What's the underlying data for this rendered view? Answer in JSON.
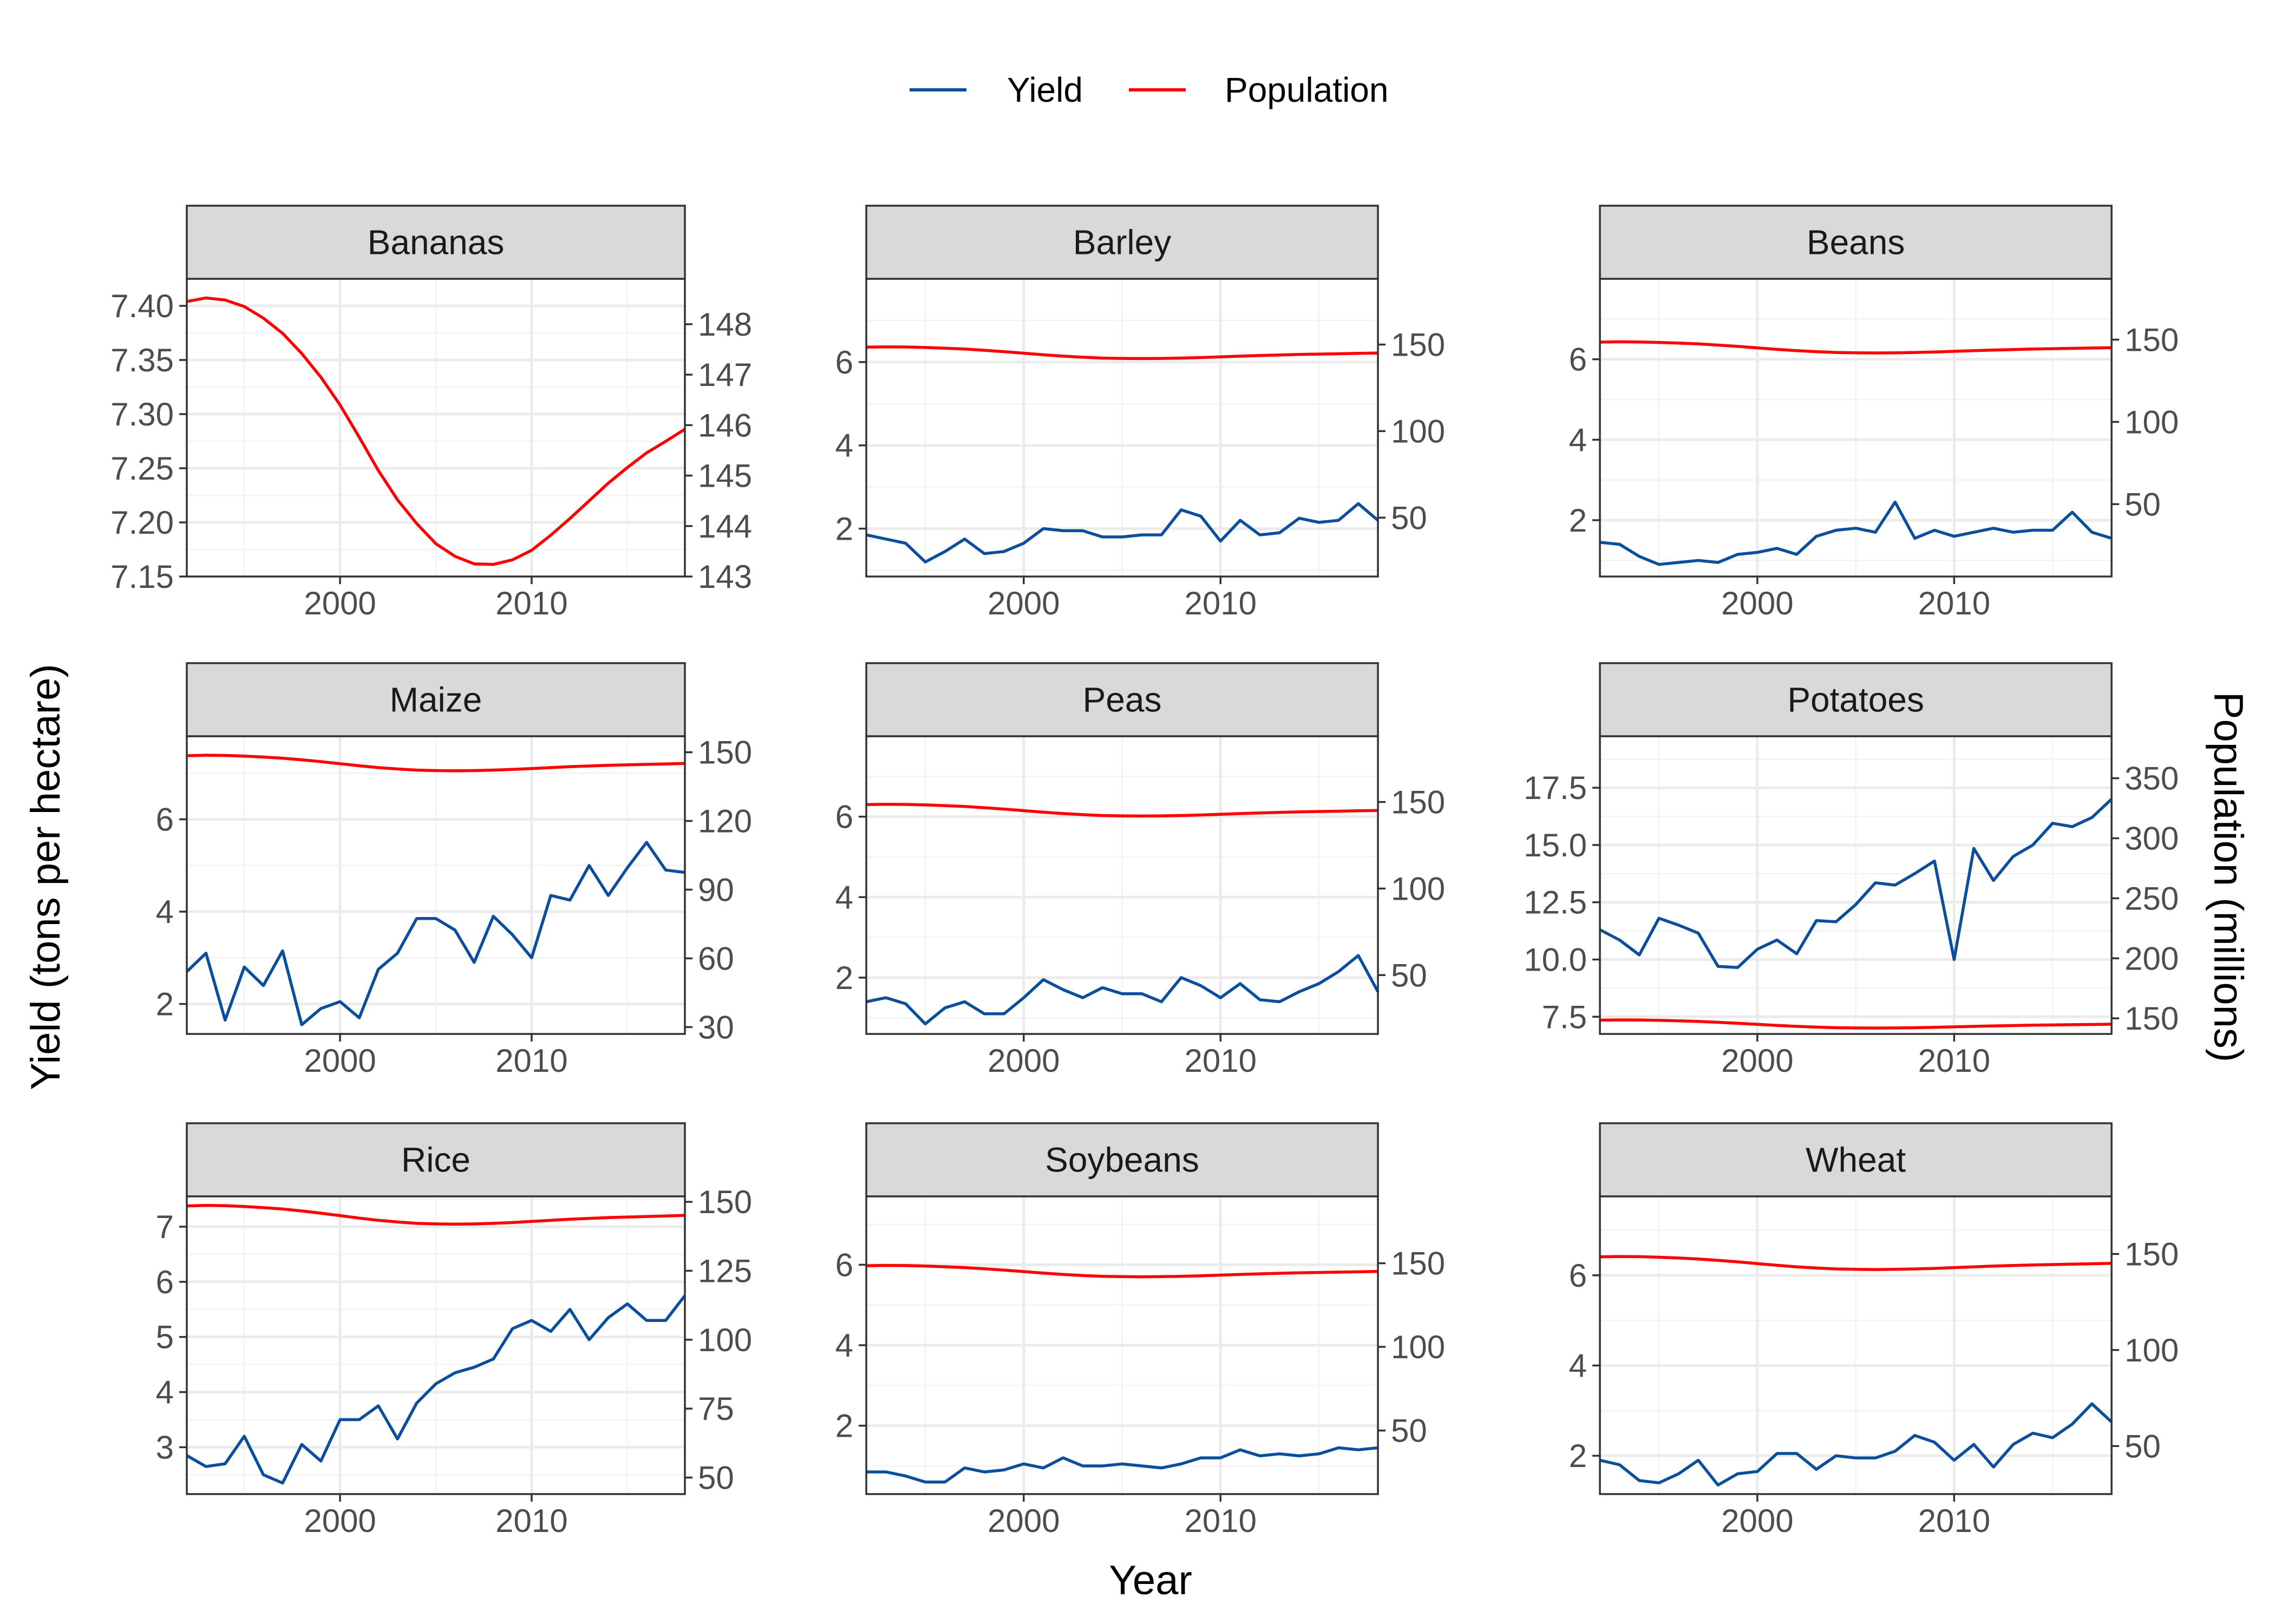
{
  "chart_data": {
    "type": "line",
    "facet": "wrap",
    "xlabel": "Year",
    "ylabel": "Yield (tons per hectare)",
    "ylabel_right": "Population (millions)",
    "legend": {
      "position": "top",
      "entries": [
        "Yield",
        "Population"
      ]
    },
    "colors": {
      "Yield": "#0b4f9c",
      "Population": "#ff0000"
    },
    "x_range": [
      1992,
      2018
    ],
    "x_ticks": [
      "2000",
      "2010"
    ],
    "years": [
      1992,
      1993,
      1994,
      1995,
      1996,
      1997,
      1998,
      1999,
      2000,
      2001,
      2002,
      2003,
      2004,
      2005,
      2006,
      2007,
      2008,
      2009,
      2010,
      2011,
      2012,
      2013,
      2014,
      2015,
      2016,
      2017,
      2018
    ],
    "population_series": [
      148.5,
      148.7,
      148.6,
      148.3,
      147.9,
      147.4,
      146.7,
      145.9,
      145.0,
      144.1,
      143.3,
      142.7,
      142.2,
      142.0,
      141.9,
      142.0,
      142.2,
      142.5,
      142.9,
      143.3,
      143.7,
      144.0,
      144.3,
      144.5,
      144.7,
      144.9,
      145.1
    ],
    "panels": [
      {
        "title": "Bananas",
        "yield": [],
        "population": [
          148.45,
          148.52,
          148.48,
          148.35,
          148.12,
          147.82,
          147.42,
          146.95,
          146.4,
          145.76,
          145.1,
          144.52,
          144.05,
          143.65,
          143.4,
          143.25,
          143.24,
          143.33,
          143.52,
          143.82,
          144.15,
          144.5,
          144.85,
          145.16,
          145.45,
          145.68,
          145.92
        ],
        "y_left": {
          "range": [
            7.15,
            7.425
          ],
          "ticks": [
            "7.15",
            "7.20",
            "7.25",
            "7.30",
            "7.35",
            "7.40"
          ]
        },
        "y_right": {
          "range": [
            143,
            148.9
          ],
          "ticks": [
            "143",
            "144",
            "145",
            "146",
            "147",
            "148"
          ]
        }
      },
      {
        "title": "Barley",
        "yield": [
          1.85,
          1.75,
          1.65,
          1.2,
          1.45,
          1.75,
          1.4,
          1.45,
          1.65,
          2.0,
          1.95,
          1.95,
          1.8,
          1.8,
          1.85,
          1.85,
          2.45,
          2.3,
          1.7,
          2.2,
          1.85,
          1.9,
          2.25,
          2.15,
          2.2,
          2.6,
          2.2
        ],
        "y_left": {
          "range": [
            0.85,
            8.0
          ],
          "ticks": [
            "2",
            "4",
            "6"
          ]
        },
        "y_right": {
          "range": [
            16,
            188
          ],
          "ticks": [
            "50",
            "100",
            "150"
          ]
        }
      },
      {
        "title": "Beans",
        "yield": [
          1.45,
          1.4,
          1.1,
          0.9,
          0.95,
          1.0,
          0.95,
          1.15,
          1.2,
          1.3,
          1.15,
          1.6,
          1.75,
          1.8,
          1.7,
          2.45,
          1.55,
          1.75,
          1.6,
          1.7,
          1.8,
          1.7,
          1.75,
          1.75,
          2.2,
          1.7,
          1.55
        ],
        "y_left": {
          "range": [
            0.6,
            8.0
          ],
          "ticks": [
            "2",
            "4",
            "6"
          ]
        },
        "y_right": {
          "range": [
            6,
            187
          ],
          "ticks": [
            "50",
            "100",
            "150"
          ]
        }
      },
      {
        "title": "Maize",
        "yield": [
          2.7,
          3.1,
          1.65,
          2.8,
          2.4,
          3.15,
          1.55,
          1.9,
          2.05,
          1.7,
          2.75,
          3.1,
          3.85,
          3.85,
          3.6,
          2.9,
          3.9,
          3.5,
          3.0,
          4.35,
          4.25,
          5.0,
          4.35,
          4.95,
          5.5,
          4.9,
          4.85
        ],
        "y_left": {
          "range": [
            1.35,
            7.8
          ],
          "ticks": [
            "2",
            "4",
            "6"
          ]
        },
        "y_right": {
          "range": [
            27,
            157
          ],
          "ticks": [
            "30",
            "60",
            "90",
            "120",
            "150"
          ]
        }
      },
      {
        "title": "Peas",
        "yield": [
          1.4,
          1.5,
          1.35,
          0.85,
          1.25,
          1.4,
          1.1,
          1.1,
          1.5,
          1.95,
          1.7,
          1.5,
          1.75,
          1.6,
          1.6,
          1.4,
          2.0,
          1.8,
          1.5,
          1.85,
          1.45,
          1.4,
          1.65,
          1.85,
          2.15,
          2.55,
          1.65
        ],
        "y_left": {
          "range": [
            0.6,
            8.0
          ],
          "ticks": [
            "2",
            "4",
            "6"
          ]
        },
        "y_right": {
          "range": [
            16,
            188
          ],
          "ticks": [
            "50",
            "100",
            "150"
          ]
        }
      },
      {
        "title": "Potatoes",
        "yield": [
          11.3,
          10.85,
          10.2,
          11.8,
          11.5,
          11.15,
          9.7,
          9.65,
          10.45,
          10.85,
          10.25,
          11.7,
          11.65,
          12.4,
          13.35,
          13.25,
          13.75,
          14.3,
          10.0,
          14.85,
          13.45,
          14.5,
          15.0,
          15.95,
          15.8,
          16.2,
          17.0
        ],
        "y_left": {
          "range": [
            6.75,
            19.75
          ],
          "ticks": [
            "7.5",
            "10.0",
            "12.5",
            "15.0",
            "17.5"
          ]
        },
        "y_right": {
          "range": [
            137,
            385
          ],
          "ticks": [
            "150",
            "200",
            "250",
            "300",
            "350"
          ]
        }
      },
      {
        "title": "Rice",
        "yield": [
          2.85,
          2.65,
          2.7,
          3.2,
          2.5,
          2.35,
          3.05,
          2.75,
          3.5,
          3.5,
          3.75,
          3.15,
          3.8,
          4.15,
          4.35,
          4.45,
          4.6,
          5.15,
          5.3,
          5.1,
          5.5,
          4.95,
          5.35,
          5.6,
          5.3,
          5.3,
          5.75
        ],
        "y_left": {
          "range": [
            2.15,
            7.55
          ],
          "ticks": [
            "3",
            "4",
            "5",
            "6",
            "7"
          ]
        },
        "y_right": {
          "range": [
            44,
            152
          ],
          "ticks": [
            "50",
            "75",
            "100",
            "125",
            "150"
          ]
        }
      },
      {
        "title": "Soybeans",
        "yield": [
          0.85,
          0.85,
          0.75,
          0.6,
          0.6,
          0.95,
          0.85,
          0.9,
          1.05,
          0.95,
          1.2,
          1.0,
          1.0,
          1.05,
          1.0,
          0.95,
          1.05,
          1.2,
          1.2,
          1.4,
          1.25,
          1.3,
          1.25,
          1.3,
          1.45,
          1.4,
          1.45
        ],
        "y_left": {
          "range": [
            0.3,
            7.7
          ],
          "ticks": [
            "2",
            "4",
            "6"
          ]
        },
        "y_right": {
          "range": [
            12,
            190
          ],
          "ticks": [
            "50",
            "100",
            "150"
          ]
        }
      },
      {
        "title": "Wheat",
        "yield": [
          1.9,
          1.8,
          1.45,
          1.4,
          1.6,
          1.9,
          1.35,
          1.6,
          1.65,
          2.05,
          2.05,
          1.7,
          2.0,
          1.95,
          1.95,
          2.1,
          2.45,
          2.3,
          1.9,
          2.25,
          1.75,
          2.25,
          2.5,
          2.4,
          2.7,
          3.15,
          2.75
        ],
        "y_left": {
          "range": [
            1.15,
            7.75
          ],
          "ticks": [
            "2",
            "4",
            "6"
          ]
        },
        "y_right": {
          "range": [
            25,
            180
          ],
          "ticks": [
            "50",
            "100",
            "150"
          ]
        }
      }
    ]
  }
}
